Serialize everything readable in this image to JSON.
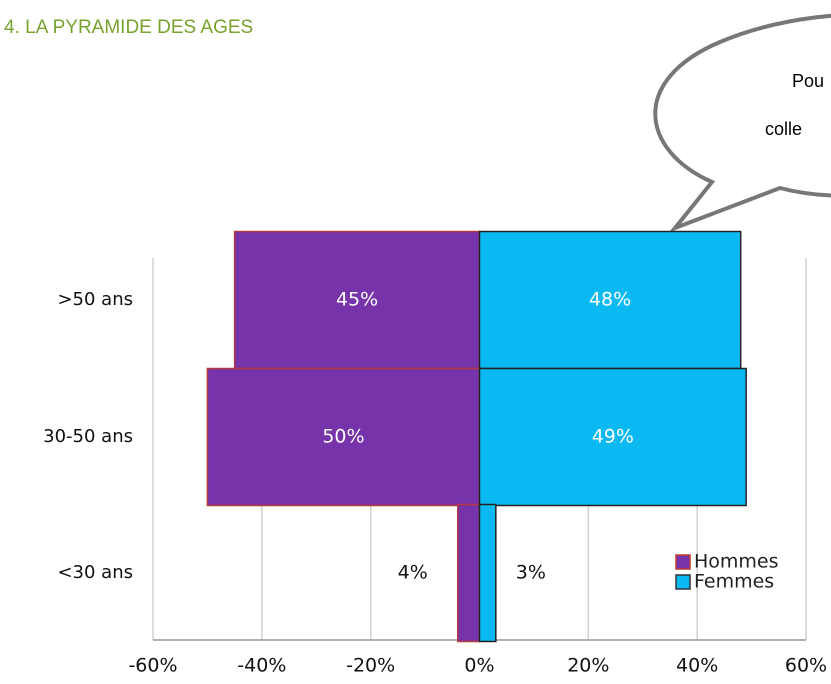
{
  "header": {
    "title": "4. LA PYRAMIDE DES AGES"
  },
  "bubble": {
    "lines": [
      "Pou",
      "colle"
    ]
  },
  "chart_data": {
    "type": "pyramid",
    "categories": [
      ">50 ans",
      "30-50 ans",
      "<30 ans"
    ],
    "series": [
      {
        "name": "Hommes",
        "color": "#7633aa",
        "values": [
          45,
          50,
          4
        ],
        "value_labels": [
          "45%",
          "50%",
          "4%"
        ]
      },
      {
        "name": "Femmes",
        "color": "#0bb9f2",
        "values": [
          48,
          49,
          3
        ],
        "value_labels": [
          "48%",
          "49%",
          "3%"
        ]
      }
    ],
    "xlim": [
      -60,
      60
    ],
    "xticks": [
      {
        "value": -60,
        "label": "-60%"
      },
      {
        "value": -40,
        "label": "-40%"
      },
      {
        "value": -20,
        "label": "-20%"
      },
      {
        "value": 0,
        "label": "0%"
      },
      {
        "value": 20,
        "label": "20%"
      },
      {
        "value": 40,
        "label": "40%"
      },
      {
        "value": 60,
        "label": "60%"
      }
    ],
    "grid": true,
    "legend": "lower right"
  }
}
